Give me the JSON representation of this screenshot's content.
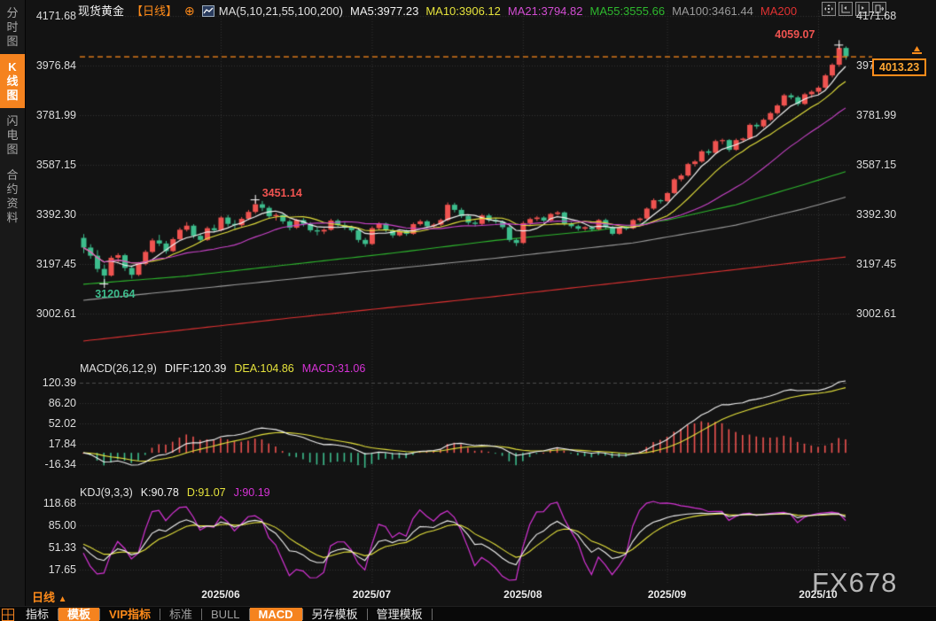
{
  "header": {
    "symbol": "现货黄金",
    "period_tag": "【日线】",
    "add_icon": "⊕",
    "ma_group_label": "MA(5,10,21,55,100,200)",
    "ma_values": [
      {
        "text": "MA5:3977.23",
        "color": "#f0f0f0"
      },
      {
        "text": "MA10:3906.12",
        "color": "#e6e33c"
      },
      {
        "text": "MA21:3794.82",
        "color": "#d24dd2"
      },
      {
        "text": "MA55:3555.66",
        "color": "#2eb82e"
      },
      {
        "text": "MA100:3461.44",
        "color": "#9b9b9b"
      },
      {
        "text": "MA200",
        "color": "#e03232"
      }
    ],
    "window_icons": [
      "pan-tool-icon",
      "y-axis-scale-icon",
      "x-axis-scale-icon",
      "collapse-panel-icon"
    ]
  },
  "sidebar": {
    "items": [
      {
        "label": "分时图",
        "active": false
      },
      {
        "label": "K线图",
        "active": true
      },
      {
        "label": "闪电图",
        "active": false
      },
      {
        "label": "合约资料",
        "active": false
      }
    ]
  },
  "macd_header": {
    "title": "MACD(26,12,9)",
    "diff": "DIFF:120.39",
    "dea": "DEA:104.86",
    "macd": "MACD:31.06"
  },
  "kdj_header": {
    "title": "KDJ(9,3,3)",
    "k": "K:90.78",
    "d": "D:91.07",
    "j": "J:90.19"
  },
  "time_axis": {
    "period_label": "日线",
    "period_arrow": "▲",
    "watermark": "FX678"
  },
  "toolbar": {
    "items": [
      {
        "label": "指标",
        "style": "plain"
      },
      {
        "label": "模板",
        "style": "active"
      },
      {
        "label": "VIP指标",
        "style": "orange-text"
      },
      {
        "label": "标准",
        "style": "dim"
      },
      {
        "label": "BULL",
        "style": "dim"
      },
      {
        "label": "MACD",
        "style": "active"
      },
      {
        "label": "另存模板",
        "style": "plain"
      },
      {
        "label": "管理模板",
        "style": "plain"
      }
    ]
  },
  "chart_data": {
    "type": "candlestick",
    "title": "现货黄金 日线",
    "ylim": [
      3002.61,
      4171.68
    ],
    "price_axis_values": [
      4171.68,
      3976.84,
      3781.99,
      3587.15,
      3392.3,
      3197.45,
      3002.61
    ],
    "current_price": 4013.23,
    "month_labels": [
      "2025/06",
      "2025/07",
      "2025/08",
      "2025/09",
      "2025/10"
    ],
    "month_start_indices": [
      20,
      42,
      64,
      85,
      107
    ],
    "annotations": [
      {
        "index": 110,
        "price": 4059.07,
        "text": "4059.07",
        "color": "#ef5350",
        "placement": "left-above"
      },
      {
        "index": 25,
        "price": 3451.14,
        "text": "3451.14",
        "color": "#ef5350",
        "placement": "right-above"
      },
      {
        "index": 3,
        "price": 3120.64,
        "text": "3120.64",
        "color": "#3dbd8d",
        "placement": "below"
      }
    ],
    "ma_windows": [
      5,
      10,
      21
    ],
    "overlay_lines": [
      {
        "name": "ma55",
        "color": "#2eb82e",
        "points": [
          [
            0,
            3118
          ],
          [
            15,
            3150
          ],
          [
            30,
            3195
          ],
          [
            45,
            3240
          ],
          [
            60,
            3290
          ],
          [
            75,
            3330
          ],
          [
            85,
            3370
          ],
          [
            95,
            3430
          ],
          [
            105,
            3510
          ],
          [
            111,
            3560
          ]
        ]
      },
      {
        "name": "ma100",
        "color": "#9b9b9b",
        "points": [
          [
            0,
            3055
          ],
          [
            20,
            3110
          ],
          [
            40,
            3165
          ],
          [
            60,
            3220
          ],
          [
            80,
            3280
          ],
          [
            95,
            3350
          ],
          [
            105,
            3415
          ],
          [
            111,
            3460
          ]
        ]
      },
      {
        "name": "ma200",
        "color": "#e03232",
        "points": [
          [
            0,
            2895
          ],
          [
            30,
            2985
          ],
          [
            60,
            3070
          ],
          [
            85,
            3145
          ],
          [
            111,
            3225
          ]
        ]
      }
    ],
    "macd": {
      "fast": 12,
      "slow": 26,
      "signal": 9,
      "axis_values": [
        120.39,
        86.2,
        52.02,
        17.84,
        -16.34
      ]
    },
    "kdj": {
      "n": 9,
      "m1": 3,
      "m2": 3,
      "axis_values": [
        118.68,
        85.0,
        51.33,
        17.65
      ]
    },
    "colors": {
      "bull": "#ef5350",
      "bear": "#3dbd8d",
      "ma5": "#f2f2f2",
      "ma10": "#e6e33c",
      "ma21": "#cc44cc",
      "diff": "#f2f2f2",
      "dea": "#e6e33c",
      "kdj_k": "#f2f2f2",
      "kdj_d": "#e6e33c",
      "kdj_j": "#d633d6",
      "grid": "#343434",
      "price_line": "#ff8c1a",
      "accent": "#f5831f"
    },
    "candles": [
      [
        3300,
        3315,
        3240,
        3262
      ],
      [
        3262,
        3275,
        3218,
        3230
      ],
      [
        3230,
        3252,
        3165,
        3178
      ],
      [
        3178,
        3195,
        3120.64,
        3152
      ],
      [
        3152,
        3230,
        3148,
        3222
      ],
      [
        3222,
        3240,
        3205,
        3232
      ],
      [
        3232,
        3238,
        3170,
        3182
      ],
      [
        3182,
        3192,
        3140,
        3155
      ],
      [
        3155,
        3205,
        3150,
        3198
      ],
      [
        3198,
        3252,
        3192,
        3245
      ],
      [
        3245,
        3298,
        3240,
        3290
      ],
      [
        3290,
        3312,
        3268,
        3278
      ],
      [
        3278,
        3288,
        3238,
        3248
      ],
      [
        3248,
        3302,
        3244,
        3295
      ],
      [
        3295,
        3340,
        3290,
        3332
      ],
      [
        3332,
        3362,
        3325,
        3348
      ],
      [
        3348,
        3354,
        3298,
        3308
      ],
      [
        3308,
        3318,
        3282,
        3292
      ],
      [
        3292,
        3345,
        3288,
        3338
      ],
      [
        3338,
        3352,
        3322,
        3330
      ],
      [
        3330,
        3385,
        3326,
        3380
      ],
      [
        3380,
        3390,
        3345,
        3355
      ],
      [
        3355,
        3370,
        3335,
        3350
      ],
      [
        3350,
        3382,
        3340,
        3375
      ],
      [
        3375,
        3410,
        3370,
        3402
      ],
      [
        3402,
        3451.14,
        3395,
        3432
      ],
      [
        3432,
        3445,
        3405,
        3418
      ],
      [
        3418,
        3425,
        3375,
        3385
      ],
      [
        3385,
        3398,
        3368,
        3390
      ],
      [
        3390,
        3395,
        3355,
        3365
      ],
      [
        3365,
        3372,
        3330,
        3340
      ],
      [
        3340,
        3375,
        3335,
        3370
      ],
      [
        3370,
        3378,
        3345,
        3355
      ],
      [
        3355,
        3362,
        3322,
        3330
      ],
      [
        3330,
        3340,
        3310,
        3325
      ],
      [
        3325,
        3338,
        3315,
        3332
      ],
      [
        3332,
        3375,
        3328,
        3368
      ],
      [
        3368,
        3374,
        3342,
        3350
      ],
      [
        3350,
        3360,
        3332,
        3340
      ],
      [
        3340,
        3348,
        3322,
        3330
      ],
      [
        3330,
        3335,
        3282,
        3292
      ],
      [
        3292,
        3300,
        3265,
        3276
      ],
      [
        3276,
        3345,
        3272,
        3338
      ],
      [
        3338,
        3362,
        3330,
        3356
      ],
      [
        3356,
        3360,
        3322,
        3330
      ],
      [
        3330,
        3336,
        3300,
        3310
      ],
      [
        3310,
        3330,
        3305,
        3326
      ],
      [
        3326,
        3332,
        3308,
        3316
      ],
      [
        3316,
        3360,
        3312,
        3354
      ],
      [
        3354,
        3372,
        3348,
        3365
      ],
      [
        3365,
        3370,
        3338,
        3346
      ],
      [
        3346,
        3358,
        3340,
        3352
      ],
      [
        3352,
        3376,
        3346,
        3370
      ],
      [
        3370,
        3439,
        3365,
        3430
      ],
      [
        3430,
        3438,
        3400,
        3410
      ],
      [
        3410,
        3418,
        3378,
        3386
      ],
      [
        3386,
        3392,
        3352,
        3360
      ],
      [
        3360,
        3368,
        3345,
        3355
      ],
      [
        3355,
        3394,
        3350,
        3388
      ],
      [
        3388,
        3395,
        3362,
        3370
      ],
      [
        3370,
        3378,
        3356,
        3364
      ],
      [
        3364,
        3370,
        3334,
        3342
      ],
      [
        3342,
        3348,
        3284,
        3292
      ],
      [
        3292,
        3298,
        3268,
        3280
      ],
      [
        3280,
        3365,
        3276,
        3358
      ],
      [
        3358,
        3380,
        3350,
        3374
      ],
      [
        3374,
        3386,
        3366,
        3380
      ],
      [
        3380,
        3385,
        3360,
        3368
      ],
      [
        3368,
        3398,
        3362,
        3394
      ],
      [
        3394,
        3406,
        3388,
        3400
      ],
      [
        3400,
        3404,
        3348,
        3356
      ],
      [
        3356,
        3362,
        3338,
        3346
      ],
      [
        3346,
        3352,
        3328,
        3336
      ],
      [
        3336,
        3346,
        3328,
        3342
      ],
      [
        3342,
        3348,
        3326,
        3334
      ],
      [
        3334,
        3374,
        3330,
        3370
      ],
      [
        3370,
        3376,
        3334,
        3342
      ],
      [
        3342,
        3348,
        3310,
        3316
      ],
      [
        3316,
        3344,
        3312,
        3340
      ],
      [
        3340,
        3346,
        3330,
        3338
      ],
      [
        3338,
        3374,
        3334,
        3370
      ],
      [
        3370,
        3380,
        3362,
        3376
      ],
      [
        3376,
        3420,
        3372,
        3415
      ],
      [
        3415,
        3455,
        3410,
        3448
      ],
      [
        3448,
        3452,
        3435,
        3444
      ],
      [
        3444,
        3480,
        3440,
        3476
      ],
      [
        3476,
        3535,
        3472,
        3530
      ],
      [
        3530,
        3552,
        3522,
        3545
      ],
      [
        3545,
        3595,
        3540,
        3590
      ],
      [
        3590,
        3606,
        3580,
        3600
      ],
      [
        3600,
        3646,
        3595,
        3640
      ],
      [
        3640,
        3648,
        3625,
        3634
      ],
      [
        3634,
        3686,
        3630,
        3680
      ],
      [
        3680,
        3690,
        3668,
        3684
      ],
      [
        3684,
        3688,
        3638,
        3646
      ],
      [
        3646,
        3690,
        3642,
        3684
      ],
      [
        3684,
        3694,
        3676,
        3690
      ],
      [
        3690,
        3750,
        3686,
        3744
      ],
      [
        3744,
        3752,
        3728,
        3738
      ],
      [
        3738,
        3770,
        3732,
        3764
      ],
      [
        3764,
        3796,
        3758,
        3790
      ],
      [
        3790,
        3826,
        3784,
        3820
      ],
      [
        3820,
        3866,
        3815,
        3860
      ],
      [
        3860,
        3868,
        3844,
        3852
      ],
      [
        3852,
        3858,
        3818,
        3826
      ],
      [
        3826,
        3870,
        3822,
        3864
      ],
      [
        3864,
        3880,
        3850,
        3874
      ],
      [
        3874,
        3896,
        3862,
        3890
      ],
      [
        3890,
        3944,
        3884,
        3938
      ],
      [
        3938,
        3986,
        3930,
        3980
      ],
      [
        3980,
        4059.07,
        3972,
        4046
      ],
      [
        4046,
        4052,
        4000,
        4013.23
      ]
    ]
  }
}
